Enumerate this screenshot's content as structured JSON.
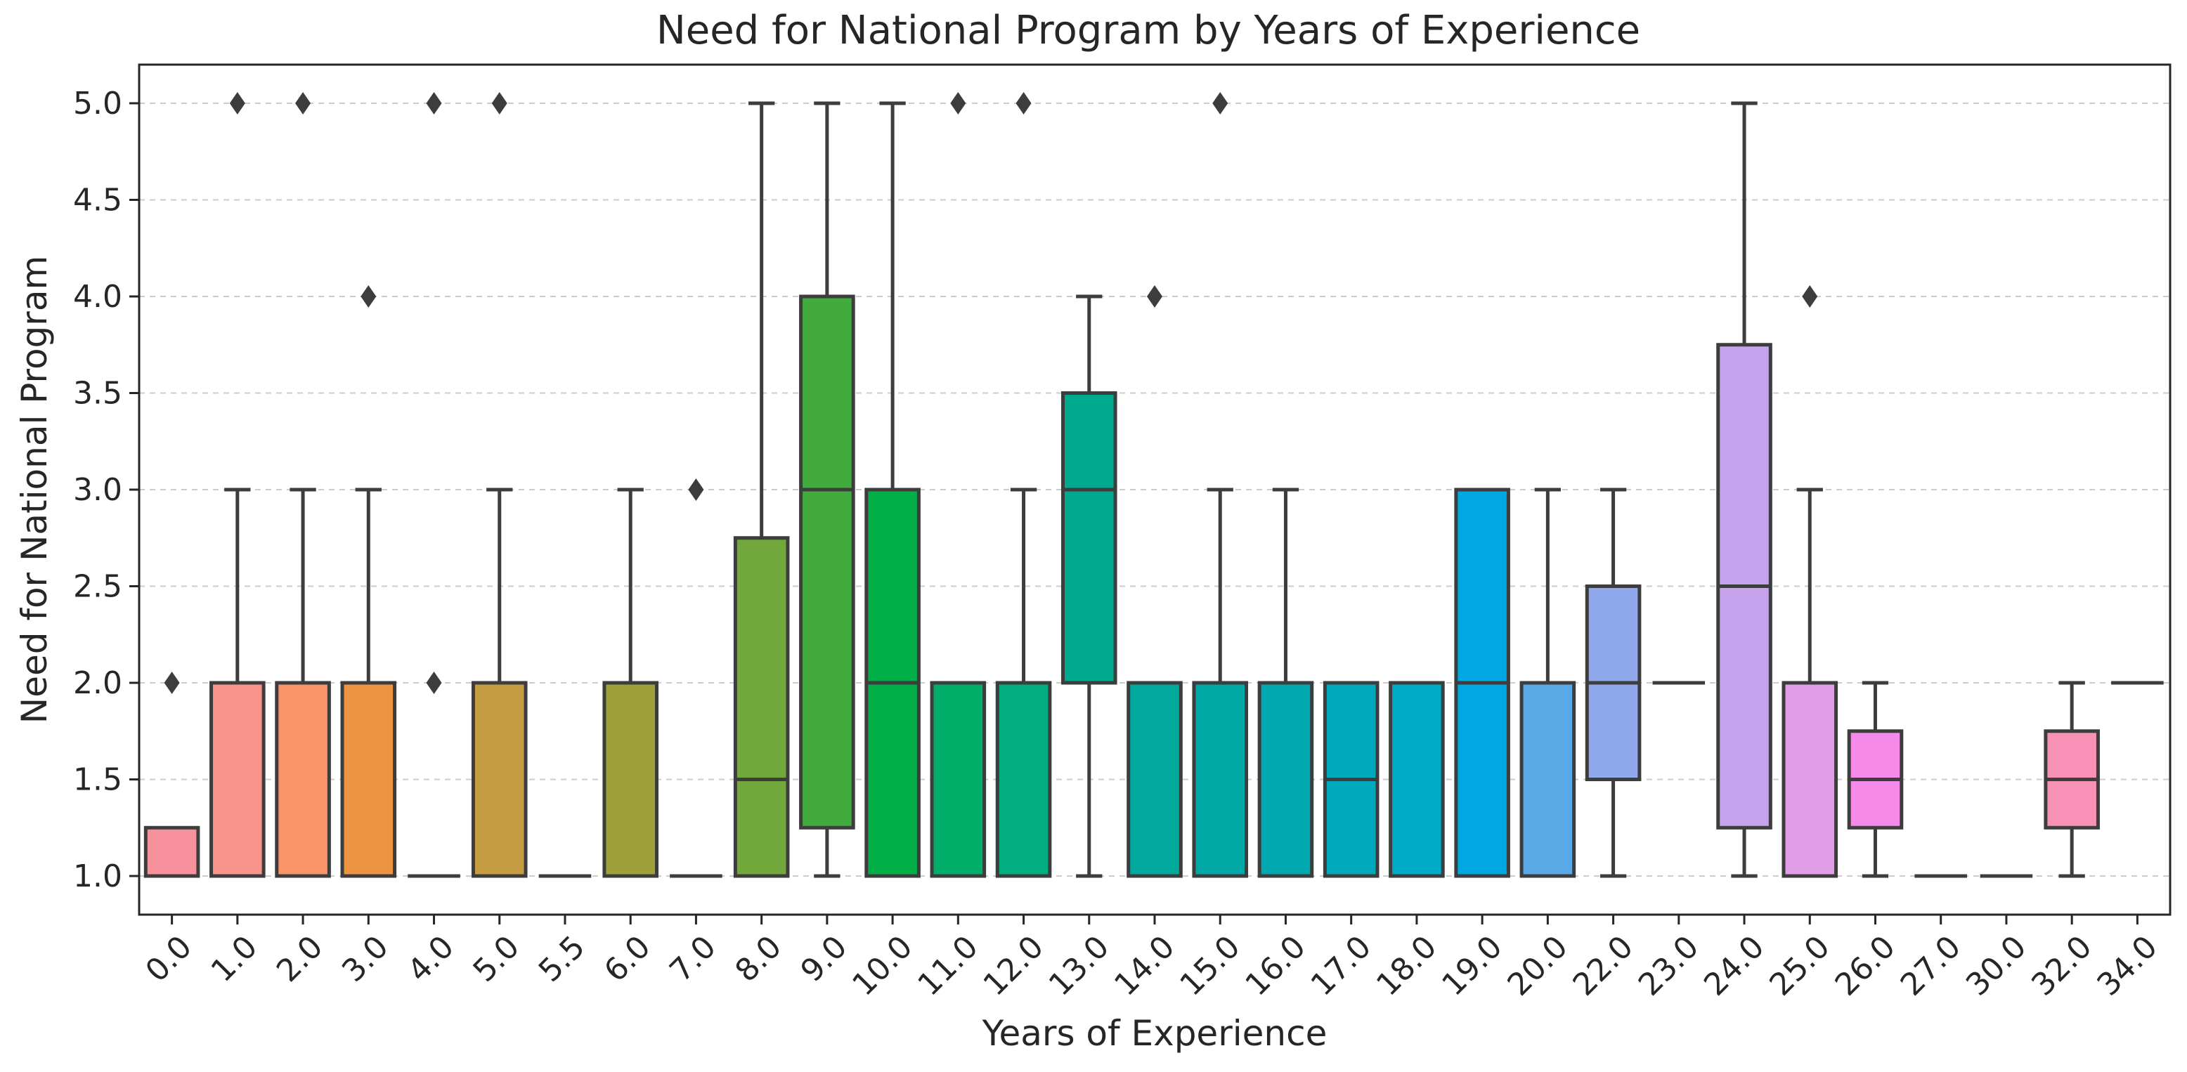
{
  "chart_data": {
    "type": "boxplot",
    "title": "Need for National Program by Years of Experience",
    "xlabel": "Years of Experience",
    "ylabel": "Need for National Program",
    "ylim": [
      0.8,
      5.2
    ],
    "yticks": [
      "1.0",
      "1.5",
      "2.0",
      "2.5",
      "3.0",
      "3.5",
      "4.0",
      "4.5",
      "5.0"
    ],
    "grid": "horizontal dashed",
    "categories": [
      "0.0",
      "1.0",
      "2.0",
      "3.0",
      "4.0",
      "5.0",
      "5.5",
      "6.0",
      "7.0",
      "8.0",
      "9.0",
      "10.0",
      "11.0",
      "12.0",
      "13.0",
      "14.0",
      "15.0",
      "16.0",
      "17.0",
      "18.0",
      "19.0",
      "20.0",
      "22.0",
      "23.0",
      "24.0",
      "25.0",
      "26.0",
      "27.0",
      "30.0",
      "32.0",
      "34.0"
    ],
    "boxes": [
      {
        "category": "0.0",
        "whisker_low": 1.0,
        "q1": 1.0,
        "median": 1.0,
        "q3": 1.25,
        "whisker_high": 1.25,
        "fliers": [
          2.0
        ],
        "color": "#f7919b"
      },
      {
        "category": "1.0",
        "whisker_low": 1.0,
        "q1": 1.0,
        "median": 1.0,
        "q3": 2.0,
        "whisker_high": 3.0,
        "fliers": [
          5.0
        ],
        "color": "#f7948b"
      },
      {
        "category": "2.0",
        "whisker_low": 1.0,
        "q1": 1.0,
        "median": 1.0,
        "q3": 2.0,
        "whisker_high": 3.0,
        "fliers": [
          5.0
        ],
        "color": "#f99469"
      },
      {
        "category": "3.0",
        "whisker_low": 1.0,
        "q1": 1.0,
        "median": 1.0,
        "q3": 2.0,
        "whisker_high": 3.0,
        "fliers": [
          4.0
        ],
        "color": "#ec9442"
      },
      {
        "category": "4.0",
        "whisker_low": 1.0,
        "q1": 1.0,
        "median": 1.0,
        "q3": 1.0,
        "whisker_high": 1.0,
        "fliers": [
          2.0,
          5.0
        ],
        "color": "#d99e40"
      },
      {
        "category": "5.0",
        "whisker_low": 1.0,
        "q1": 1.0,
        "median": 1.0,
        "q3": 2.0,
        "whisker_high": 3.0,
        "fliers": [
          5.0
        ],
        "color": "#c59c41"
      },
      {
        "category": "5.5",
        "whisker_low": 1.0,
        "q1": 1.0,
        "median": 1.0,
        "q3": 1.0,
        "whisker_high": 1.0,
        "fliers": [],
        "color": "#b3a03a"
      },
      {
        "category": "6.0",
        "whisker_low": 1.0,
        "q1": 1.0,
        "median": 1.0,
        "q3": 2.0,
        "whisker_high": 3.0,
        "fliers": [],
        "color": "#a0a03b"
      },
      {
        "category": "7.0",
        "whisker_low": 1.0,
        "q1": 1.0,
        "median": 1.0,
        "q3": 1.0,
        "whisker_high": 1.0,
        "fliers": [
          3.0
        ],
        "color": "#8fa43c"
      },
      {
        "category": "8.0",
        "whisker_low": 1.0,
        "q1": 1.0,
        "median": 1.5,
        "q3": 2.75,
        "whisker_high": 5.0,
        "fliers": [],
        "color": "#72a73b"
      },
      {
        "category": "9.0",
        "whisker_low": 1.0,
        "q1": 1.25,
        "median": 3.0,
        "q3": 4.0,
        "whisker_high": 5.0,
        "fliers": [],
        "color": "#41ab3d"
      },
      {
        "category": "10.0",
        "whisker_low": 1.0,
        "q1": 1.0,
        "median": 2.0,
        "q3": 3.0,
        "whisker_high": 5.0,
        "fliers": [],
        "color": "#01ae47"
      },
      {
        "category": "11.0",
        "whisker_low": 1.0,
        "q1": 1.0,
        "median": 1.0,
        "q3": 2.0,
        "whisker_high": 2.0,
        "fliers": [
          5.0
        ],
        "color": "#00ae6a"
      },
      {
        "category": "12.0",
        "whisker_low": 1.0,
        "q1": 1.0,
        "median": 1.0,
        "q3": 2.0,
        "whisker_high": 3.0,
        "fliers": [
          5.0
        ],
        "color": "#00ae80"
      },
      {
        "category": "13.0",
        "whisker_low": 1.0,
        "q1": 2.0,
        "median": 3.0,
        "q3": 3.5,
        "whisker_high": 4.0,
        "fliers": [],
        "color": "#00aa8e"
      },
      {
        "category": "14.0",
        "whisker_low": 1.0,
        "q1": 1.0,
        "median": 1.0,
        "q3": 2.0,
        "whisker_high": 2.0,
        "fliers": [
          4.0
        ],
        "color": "#00a99c"
      },
      {
        "category": "15.0",
        "whisker_low": 1.0,
        "q1": 1.0,
        "median": 1.0,
        "q3": 2.0,
        "whisker_high": 3.0,
        "fliers": [
          5.0
        ],
        "color": "#00a8a6"
      },
      {
        "category": "16.0",
        "whisker_low": 1.0,
        "q1": 1.0,
        "median": 1.0,
        "q3": 2.0,
        "whisker_high": 3.0,
        "fliers": [],
        "color": "#00a9b0"
      },
      {
        "category": "17.0",
        "whisker_low": 1.0,
        "q1": 1.0,
        "median": 1.5,
        "q3": 2.0,
        "whisker_high": 2.0,
        "fliers": [],
        "color": "#00a9bc"
      },
      {
        "category": "18.0",
        "whisker_low": 1.0,
        "q1": 1.0,
        "median": 1.0,
        "q3": 2.0,
        "whisker_high": 2.0,
        "fliers": [],
        "color": "#00abc8"
      },
      {
        "category": "19.0",
        "whisker_low": 1.0,
        "q1": 1.0,
        "median": 2.0,
        "q3": 3.0,
        "whisker_high": 3.0,
        "fliers": [],
        "color": "#00a7e2"
      },
      {
        "category": "20.0",
        "whisker_low": 1.0,
        "q1": 1.0,
        "median": 1.0,
        "q3": 2.0,
        "whisker_high": 3.0,
        "fliers": [],
        "color": "#5aa9e7"
      },
      {
        "category": "22.0",
        "whisker_low": 1.0,
        "q1": 1.5,
        "median": 2.0,
        "q3": 2.5,
        "whisker_high": 3.0,
        "fliers": [],
        "color": "#8fa9ec"
      },
      {
        "category": "23.0",
        "whisker_low": 2.0,
        "q1": 2.0,
        "median": 2.0,
        "q3": 2.0,
        "whisker_high": 2.0,
        "fliers": [],
        "color": "#a6a5ee"
      },
      {
        "category": "24.0",
        "whisker_low": 1.0,
        "q1": 1.25,
        "median": 2.5,
        "q3": 3.75,
        "whisker_high": 5.0,
        "fliers": [],
        "color": "#c7a2ed"
      },
      {
        "category": "25.0",
        "whisker_low": 1.0,
        "q1": 1.0,
        "median": 1.0,
        "q3": 2.0,
        "whisker_high": 3.0,
        "fliers": [
          4.0
        ],
        "color": "#e19de8"
      },
      {
        "category": "26.0",
        "whisker_low": 1.0,
        "q1": 1.25,
        "median": 1.5,
        "q3": 1.75,
        "whisker_high": 2.0,
        "fliers": [],
        "color": "#f68ae8"
      },
      {
        "category": "27.0",
        "whisker_low": 1.0,
        "q1": 1.0,
        "median": 1.0,
        "q3": 1.0,
        "whisker_high": 1.0,
        "fliers": [],
        "color": "#f98ad6"
      },
      {
        "category": "30.0",
        "whisker_low": 1.0,
        "q1": 1.0,
        "median": 1.0,
        "q3": 1.0,
        "whisker_high": 1.0,
        "fliers": [],
        "color": "#f98ec6"
      },
      {
        "category": "32.0",
        "whisker_low": 1.0,
        "q1": 1.25,
        "median": 1.5,
        "q3": 1.75,
        "whisker_high": 2.0,
        "fliers": [],
        "color": "#f792b6"
      },
      {
        "category": "34.0",
        "whisker_low": 2.0,
        "q1": 2.0,
        "median": 2.0,
        "q3": 2.0,
        "whisker_high": 2.0,
        "fliers": [],
        "color": "#f594a6"
      }
    ]
  }
}
